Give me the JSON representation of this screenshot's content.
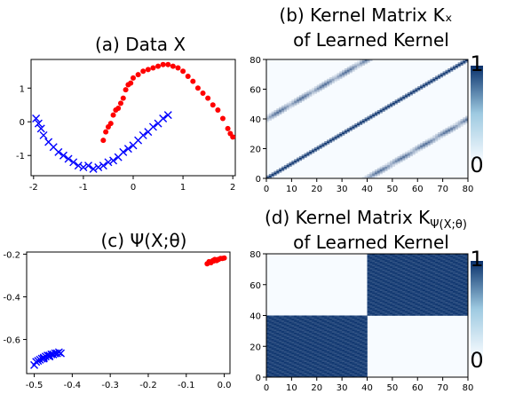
{
  "chart_data": [
    {
      "type": "scatter",
      "title": "(a) Data X",
      "xlabel": "",
      "ylabel": "",
      "xlim": [
        -2.05,
        2.05
      ],
      "ylim": [
        -1.6,
        1.85
      ],
      "xticks": [
        "-2",
        "-1",
        "0",
        "1",
        "2"
      ],
      "yticks": [
        "1",
        "0",
        "-1"
      ],
      "ytick_values": [
        1,
        0,
        -1
      ],
      "xtick_values": [
        -2,
        -1,
        0,
        1,
        2
      ],
      "series": [
        {
          "marker": "dot",
          "color": "#ff0000",
          "points": [
            [
              -0.6,
              -0.55
            ],
            [
              -0.55,
              -0.3
            ],
            [
              -0.5,
              -0.15
            ],
            [
              -0.45,
              -0.05
            ],
            [
              -0.4,
              0.2
            ],
            [
              -0.35,
              0.35
            ],
            [
              -0.3,
              0.4
            ],
            [
              -0.25,
              0.55
            ],
            [
              -0.2,
              0.7
            ],
            [
              -0.15,
              0.95
            ],
            [
              -0.1,
              1.1
            ],
            [
              -0.05,
              1.15
            ],
            [
              0.0,
              1.3
            ],
            [
              0.1,
              1.4
            ],
            [
              0.2,
              1.5
            ],
            [
              0.3,
              1.55
            ],
            [
              0.4,
              1.6
            ],
            [
              0.5,
              1.65
            ],
            [
              0.6,
              1.7
            ],
            [
              0.7,
              1.7
            ],
            [
              0.8,
              1.65
            ],
            [
              0.9,
              1.6
            ],
            [
              1.0,
              1.5
            ],
            [
              1.1,
              1.35
            ],
            [
              1.2,
              1.2
            ],
            [
              1.3,
              1.0
            ],
            [
              1.4,
              0.85
            ],
            [
              1.5,
              0.7
            ],
            [
              1.6,
              0.5
            ],
            [
              1.7,
              0.35
            ],
            [
              1.8,
              0.1
            ],
            [
              1.9,
              -0.2
            ],
            [
              1.95,
              -0.35
            ],
            [
              2.0,
              -0.45
            ]
          ]
        },
        {
          "marker": "x",
          "color": "#0000ff",
          "points": [
            [
              -1.95,
              0.1
            ],
            [
              -1.9,
              -0.05
            ],
            [
              -1.85,
              -0.2
            ],
            [
              -1.8,
              -0.4
            ],
            [
              -1.7,
              -0.6
            ],
            [
              -1.6,
              -0.75
            ],
            [
              -1.5,
              -0.9
            ],
            [
              -1.4,
              -1.0
            ],
            [
              -1.3,
              -1.1
            ],
            [
              -1.2,
              -1.2
            ],
            [
              -1.1,
              -1.3
            ],
            [
              -1.0,
              -1.35
            ],
            [
              -0.9,
              -1.3
            ],
            [
              -0.8,
              -1.4
            ],
            [
              -0.7,
              -1.35
            ],
            [
              -0.6,
              -1.3
            ],
            [
              -0.5,
              -1.2
            ],
            [
              -0.4,
              -1.15
            ],
            [
              -0.3,
              -1.05
            ],
            [
              -0.2,
              -0.9
            ],
            [
              -0.1,
              -0.8
            ],
            [
              0.0,
              -0.7
            ],
            [
              0.1,
              -0.55
            ],
            [
              0.2,
              -0.4
            ],
            [
              0.3,
              -0.3
            ],
            [
              0.4,
              -0.15
            ],
            [
              0.5,
              -0.05
            ],
            [
              0.6,
              0.1
            ],
            [
              0.7,
              0.2
            ]
          ]
        }
      ]
    },
    {
      "type": "heatmap",
      "title_line1": "(b) Kernel Matrix Kₓ",
      "title_line2": "of Learned Kernel",
      "xlim": [
        0,
        80
      ],
      "ylim": [
        0,
        80
      ],
      "xticks": [
        "0",
        "10",
        "20",
        "30",
        "40",
        "50",
        "60",
        "70",
        "80"
      ],
      "yticks": [
        "0",
        "20",
        "40",
        "60",
        "80"
      ],
      "colorbar_ticks": [
        "0",
        "1"
      ],
      "colormap": [
        "#f7fbff",
        "#08306b"
      ],
      "description_values": "sharp main diagonal plus bands at offset ±40, Gaussian-like local similarity"
    },
    {
      "type": "scatter",
      "title": "(c) Ψ(X;θ)",
      "xlabel": "",
      "ylabel": "",
      "xlim": [
        -0.52,
        0.015
      ],
      "ylim": [
        -0.76,
        -0.19
      ],
      "xticks": [
        "-0.5",
        "-0.4",
        "-0.3",
        "-0.2",
        "-0.1",
        "0.0"
      ],
      "xtick_values": [
        -0.5,
        -0.4,
        -0.3,
        -0.2,
        -0.1,
        0.0
      ],
      "yticks": [
        "-0.2",
        "-0.4",
        "-0.6"
      ],
      "ytick_values": [
        -0.2,
        -0.4,
        -0.6
      ],
      "series": [
        {
          "marker": "dot",
          "color": "#ff0000",
          "points": [
            [
              -0.045,
              -0.245
            ],
            [
              -0.04,
              -0.235
            ],
            [
              -0.035,
              -0.24
            ],
            [
              -0.03,
              -0.23
            ],
            [
              -0.025,
              -0.225
            ],
            [
              -0.02,
              -0.23
            ],
            [
              -0.015,
              -0.225
            ],
            [
              -0.01,
              -0.22
            ],
            [
              -0.005,
              -0.22
            ],
            [
              0.0,
              -0.218
            ],
            [
              -0.028,
              -0.232
            ],
            [
              -0.018,
              -0.226
            ]
          ]
        },
        {
          "marker": "x",
          "color": "#0000ff",
          "points": [
            [
              -0.5,
              -0.72
            ],
            [
              -0.495,
              -0.705
            ],
            [
              -0.49,
              -0.7
            ],
            [
              -0.485,
              -0.695
            ],
            [
              -0.48,
              -0.69
            ],
            [
              -0.475,
              -0.685
            ],
            [
              -0.47,
              -0.68
            ],
            [
              -0.465,
              -0.675
            ],
            [
              -0.46,
              -0.675
            ],
            [
              -0.455,
              -0.67
            ],
            [
              -0.45,
              -0.67
            ],
            [
              -0.445,
              -0.665
            ],
            [
              -0.44,
              -0.665
            ],
            [
              -0.435,
              -0.66
            ],
            [
              -0.43,
              -0.665
            ],
            [
              -0.475,
              -0.69
            ],
            [
              -0.46,
              -0.68
            ]
          ]
        }
      ]
    },
    {
      "type": "heatmap",
      "title_line1": "(d) Kernel Matrix K",
      "title_sub": "Ψ(X;θ)",
      "title_line2": "of Learned Kernel",
      "xlim": [
        0,
        80
      ],
      "ylim": [
        0,
        80
      ],
      "xticks": [
        "0",
        "10",
        "20",
        "30",
        "40",
        "50",
        "60",
        "70",
        "80"
      ],
      "yticks": [
        "0",
        "20",
        "40",
        "60",
        "80"
      ],
      "colorbar_ticks": [
        "0",
        "1"
      ],
      "colormap": [
        "#f7fbff",
        "#08306b"
      ],
      "description_values": "block diagonal: two 40x40 dark blocks"
    }
  ]
}
